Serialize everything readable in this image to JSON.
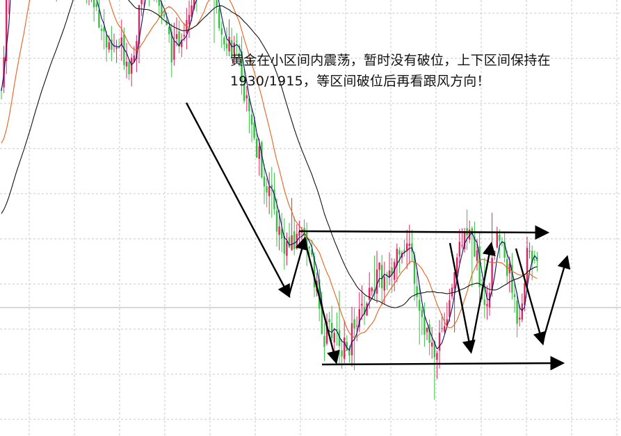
{
  "annotation": {
    "line1": "黄金在小区间内震荡，暂时没有破位，上下区间保持在",
    "line2": "1930/1915，等区间破位后再看跟风方向！"
  },
  "colors": {
    "up": "#e0245e",
    "down": "#34c240",
    "ma_fast": "#0a0a6e",
    "ma_mid": "#e8601c",
    "ma_slow": "#111111",
    "arrow": "#000000",
    "grid": "#c8c8c8"
  },
  "chart_data": {
    "type": "candlestick",
    "title": "",
    "xlabel": "",
    "ylabel": "",
    "grid": true,
    "ylim": [
      1905,
      1980
    ],
    "levels": [
      1930,
      1915
    ],
    "price_path": [
      1946,
      1968,
      1960,
      1966,
      1962,
      1958,
      1961,
      1963,
      1957,
      1955,
      1950,
      1951,
      1949,
      1956,
      1959,
      1954,
      1950,
      1954,
      1958,
      1962,
      1954,
      1952,
      1950,
      1943,
      1938,
      1934,
      1929,
      1928,
      1931,
      1925,
      1918,
      1919,
      1916,
      1920,
      1922,
      1925,
      1924,
      1929,
      1928,
      1921,
      1916,
      1919,
      1925,
      1931,
      1928,
      1920,
      1930,
      1926,
      1920,
      1928,
      1925
    ],
    "series": [
      {
        "name": "",
        "kind": "ma_fast"
      },
      {
        "name": "",
        "kind": "ma_mid"
      },
      {
        "name": "",
        "kind": "ma_slow"
      }
    ]
  }
}
